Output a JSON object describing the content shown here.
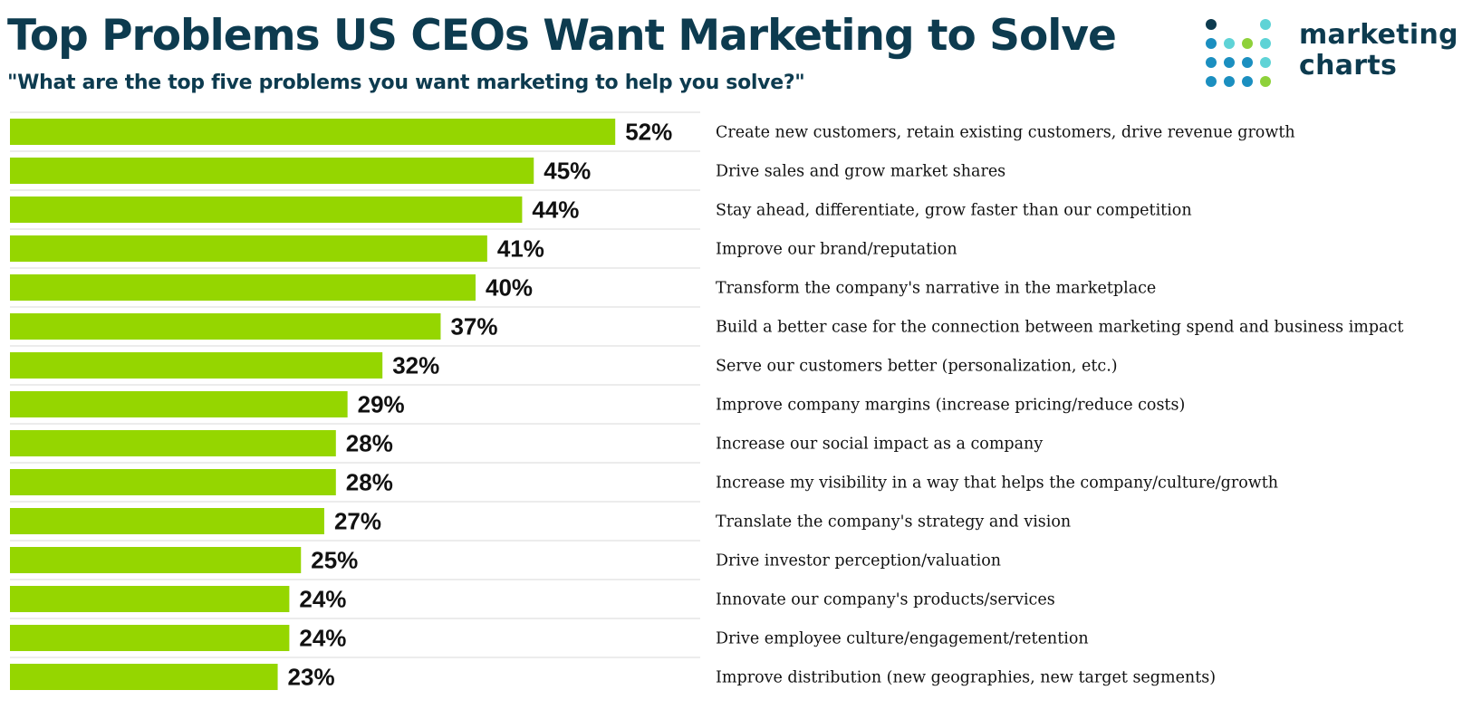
{
  "header": {
    "title": "Top Problems US CEOs Want Marketing to Solve",
    "subtitle": "\"What are the top five problems you want marketing to help you solve?\""
  },
  "logo": {
    "line1": "marketing",
    "line2": "charts",
    "colors": {
      "navy": "#0d3b4f",
      "blue": "#1b8fc0",
      "teal": "#5fd3d6",
      "green": "#8ed13a"
    }
  },
  "colors": {
    "bar": "#95d600",
    "grid": "#d9d9d9",
    "value_text": "#111111",
    "label_text": "#111111"
  },
  "chart_data": {
    "type": "bar",
    "orientation": "horizontal",
    "title": "Top Problems US CEOs Want Marketing to Solve",
    "subtitle": "\"What are the top five problems you want marketing to help you solve?\"",
    "value_suffix": "%",
    "xlim": [
      0,
      100
    ],
    "categories": [
      "Create new customers, retain existing customers, drive revenue growth",
      "Drive sales and grow market shares",
      "Stay ahead, differentiate, grow faster than our competition",
      "Improve our brand/reputation",
      "Transform the company's narrative in the marketplace",
      "Build a better case for the connection between marketing spend and business impact",
      "Serve our customers better (personalization, etc.)",
      "Improve company margins (increase pricing/reduce costs)",
      "Increase our social impact as a company",
      "Increase my visibility in a way that helps the company/culture/growth",
      "Translate the company's strategy and vision",
      "Drive investor perception/valuation",
      "Innovate our company's products/services",
      "Drive employee culture/engagement/retention",
      "Improve distribution (new geographies, new target segments)"
    ],
    "values": [
      52,
      45,
      44,
      41,
      40,
      37,
      32,
      29,
      28,
      28,
      27,
      25,
      24,
      24,
      23
    ]
  }
}
